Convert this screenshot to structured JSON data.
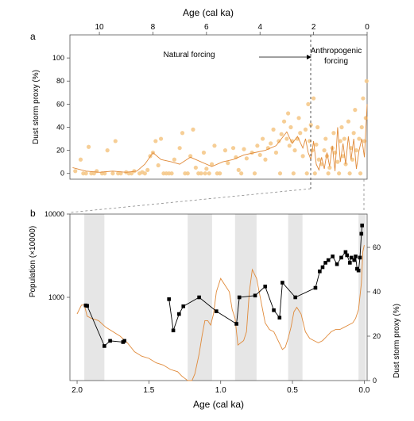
{
  "chart_data": [
    {
      "panel": "a",
      "type": "scatter",
      "title": "",
      "xlabel": "Age (cal ka)",
      "ylabel": "Dust storm proxy (%)",
      "xlim": [
        11.1,
        0
      ],
      "ylim": [
        -5,
        120
      ],
      "xticks": [
        10,
        8,
        6,
        4,
        2,
        0
      ],
      "yticks": [
        0,
        20,
        40,
        60,
        80,
        100
      ],
      "annotations": {
        "natural": "Natural forcing",
        "anthro_line1": "Anthropogenic",
        "anthro_line2": "forcing"
      },
      "colors": {
        "points": "#f5c98b",
        "line": "#e08a3a"
      },
      "series": [
        {
          "type": "scatter",
          "x": [
            10.9,
            10.7,
            10.6,
            10.4,
            10.3,
            10.1,
            9.9,
            9.7,
            9.5,
            9.4,
            9.2,
            9.0,
            8.9,
            8.7,
            8.5,
            8.4,
            8.2,
            8.1,
            8.0,
            7.9,
            7.8,
            7.7,
            7.6,
            7.5,
            7.3,
            7.2,
            7.0,
            6.9,
            6.7,
            6.6,
            6.5,
            6.4,
            6.3,
            6.2,
            6.1,
            6.0,
            5.9,
            5.8,
            5.7,
            5.5,
            5.3,
            5.2,
            5.0,
            4.9,
            4.8,
            4.6,
            4.5,
            4.3,
            4.1,
            4.0,
            3.9,
            3.8,
            3.7,
            3.6,
            3.5,
            3.4,
            3.3,
            3.2,
            3.1,
            3.0,
            2.95,
            2.9,
            2.85,
            2.8,
            2.7,
            2.6,
            2.55,
            2.5,
            2.4,
            2.3,
            2.2,
            2.15,
            2.1,
            2.05,
            2.0,
            1.9,
            1.85,
            1.8,
            1.7,
            1.6,
            1.55,
            1.5,
            1.4,
            1.3,
            1.25,
            1.2,
            1.1,
            1.0,
            0.95,
            0.9,
            0.85,
            0.8,
            0.7,
            0.6,
            0.55,
            0.5,
            0.45,
            0.4,
            0.3,
            0.2,
            0.15,
            0.1,
            0.05,
            0.02,
            10.5,
            10.2,
            9.8,
            9.3,
            8.8,
            8.3,
            7.4,
            6.8,
            6.05,
            5.6,
            4.7,
            4.2,
            3.25,
            2.75,
            2.25,
            1.95,
            1.45,
            1.05,
            0.65,
            0.25
          ],
          "y": [
            2,
            12,
            0,
            23,
            0,
            2,
            0,
            20,
            0,
            28,
            0,
            1,
            0,
            2,
            0,
            1,
            3,
            15,
            18,
            28,
            7,
            30,
            0,
            0,
            0,
            12,
            22,
            35,
            0,
            15,
            38,
            5,
            0,
            0,
            18,
            4,
            0,
            8,
            24,
            0,
            20,
            9,
            22,
            14,
            3,
            21,
            13,
            18,
            24,
            16,
            30,
            12,
            22,
            26,
            38,
            18,
            28,
            34,
            45,
            30,
            52,
            24,
            40,
            28,
            20,
            30,
            48,
            35,
            15,
            38,
            60,
            28,
            42,
            20,
            65,
            25,
            40,
            12,
            8,
            20,
            30,
            15,
            5,
            22,
            35,
            18,
            10,
            28,
            40,
            15,
            30,
            8,
            45,
            22,
            12,
            35,
            55,
            20,
            30,
            40,
            65,
            28,
            48,
            80,
            0,
            0,
            0,
            0,
            0,
            0,
            0,
            0,
            0,
            0,
            0,
            0,
            0,
            0,
            0,
            0,
            0,
            0,
            0,
            0
          ]
        },
        {
          "type": "line",
          "name": "",
          "x": [
            11.0,
            10.5,
            10.0,
            9.5,
            9.0,
            8.6,
            8.3,
            8.0,
            7.7,
            7.3,
            7.0,
            6.6,
            6.2,
            5.8,
            5.4,
            5.0,
            4.6,
            4.2,
            3.8,
            3.4,
            3.2,
            3.0,
            2.8,
            2.6,
            2.4,
            2.3,
            2.2,
            2.1,
            2.0,
            1.9,
            1.8,
            1.7,
            1.6,
            1.5,
            1.4,
            1.3,
            1.2,
            1.1,
            1.0,
            0.9,
            0.8,
            0.7,
            0.6,
            0.5,
            0.4,
            0.3,
            0.2,
            0.1,
            0.0
          ],
          "y": [
            5,
            2,
            1,
            2,
            1,
            2,
            8,
            18,
            12,
            10,
            8,
            14,
            10,
            6,
            10,
            12,
            16,
            18,
            20,
            24,
            30,
            36,
            26,
            32,
            22,
            30,
            18,
            12,
            28,
            8,
            3,
            14,
            4,
            18,
            6,
            24,
            2,
            40,
            10,
            26,
            8,
            32,
            12,
            30,
            4,
            20,
            30,
            14,
            60
          ]
        }
      ]
    },
    {
      "panel": "b",
      "type": "line",
      "title": "",
      "xlabel": "Age (cal ka)",
      "ylabel": "Population (×10000)",
      "ylabel_right": "Dust storm proxy (%)",
      "xlim": [
        2.05,
        -0.02
      ],
      "y_log_range": [
        100,
        10000
      ],
      "y_scale": "log",
      "yticks_left": [
        1000,
        10000
      ],
      "yticks_right": [
        0,
        20,
        40,
        60
      ],
      "y_right_range": [
        0,
        75
      ],
      "xticks": [
        2.0,
        1.5,
        1.0,
        0.5,
        0.0
      ],
      "shaded_bands": [
        [
          1.95,
          1.81
        ],
        [
          1.23,
          1.06
        ],
        [
          0.9,
          0.75
        ],
        [
          0.53,
          0.43
        ],
        [
          0.04,
          -0.01
        ]
      ],
      "colors": {
        "population": "#000000",
        "dust": "#e08a3a",
        "band": "#e6e6e6"
      },
      "series": [
        {
          "name": "",
          "axis": "left",
          "segments": [
            {
              "x": [
                1.94,
                1.93,
                1.81,
                1.77,
                1.68,
                1.67
              ],
              "y": [
                800,
                790,
                260,
                300,
                290,
                300
              ]
            },
            {
              "x": [
                1.36,
                1.33,
                1.29,
                1.26,
                1.15,
                1.03,
                0.89,
                0.87,
                0.76,
                0.69,
                0.63,
                0.59,
                0.57,
                0.48,
                0.34,
                0.31,
                0.29,
                0.27,
                0.25,
                0.22,
                0.19,
                0.16,
                0.13,
                0.12,
                0.1,
                0.09,
                0.07,
                0.06,
                0.05,
                0.04,
                0.03,
                0.02,
                0.015
              ],
              "y": [
                950,
                400,
                630,
                780,
                1000,
                680,
                480,
                1000,
                1050,
                1350,
                700,
                570,
                1500,
                1000,
                1300,
                2050,
                2300,
                2600,
                2800,
                3100,
                2500,
                3000,
                3500,
                3200,
                2600,
                3000,
                2800,
                3100,
                2200,
                2100,
                3000,
                5800,
                7300
              ]
            }
          ]
        },
        {
          "name": "",
          "axis": "right",
          "x": [
            2.0,
            1.97,
            1.95,
            1.93,
            1.9,
            1.85,
            1.8,
            1.75,
            1.7,
            1.65,
            1.6,
            1.55,
            1.5,
            1.45,
            1.4,
            1.35,
            1.3,
            1.27,
            1.25,
            1.23,
            1.2,
            1.18,
            1.15,
            1.13,
            1.11,
            1.09,
            1.07,
            1.05,
            1.03,
            1.0,
            0.97,
            0.94,
            0.92,
            0.9,
            0.88,
            0.86,
            0.84,
            0.82,
            0.8,
            0.78,
            0.75,
            0.72,
            0.69,
            0.66,
            0.63,
            0.6,
            0.57,
            0.55,
            0.53,
            0.51,
            0.49,
            0.47,
            0.44,
            0.41,
            0.38,
            0.35,
            0.32,
            0.29,
            0.26,
            0.23,
            0.2,
            0.17,
            0.14,
            0.11,
            0.08,
            0.06,
            0.04,
            0.02,
            0.01,
            0.0
          ],
          "y": [
            30,
            34,
            34,
            29,
            28,
            27,
            24,
            22,
            20,
            17,
            13,
            11,
            10,
            8,
            7,
            5,
            4,
            2,
            1,
            0,
            0,
            3,
            12,
            20,
            27,
            27,
            25,
            30,
            40,
            46,
            43,
            40,
            32,
            28,
            16,
            17,
            18,
            22,
            40,
            50,
            46,
            36,
            26,
            23,
            22,
            18,
            14,
            15,
            19,
            24,
            31,
            33,
            30,
            22,
            19,
            18,
            17,
            18,
            20,
            22,
            23,
            23,
            24,
            25,
            26,
            28,
            32,
            44,
            58,
            61
          ]
        }
      ]
    }
  ],
  "labels": {
    "panel_a": "a",
    "panel_b": "b",
    "top_axis_title": "Age (cal ka)",
    "bottom_axis_title": "Age (cal ka)",
    "ylabel_a": "Dust storm proxy (%)",
    "ylabel_b_left": "Population (×10000)",
    "ylabel_b_right": "Dust storm proxy (%)"
  }
}
